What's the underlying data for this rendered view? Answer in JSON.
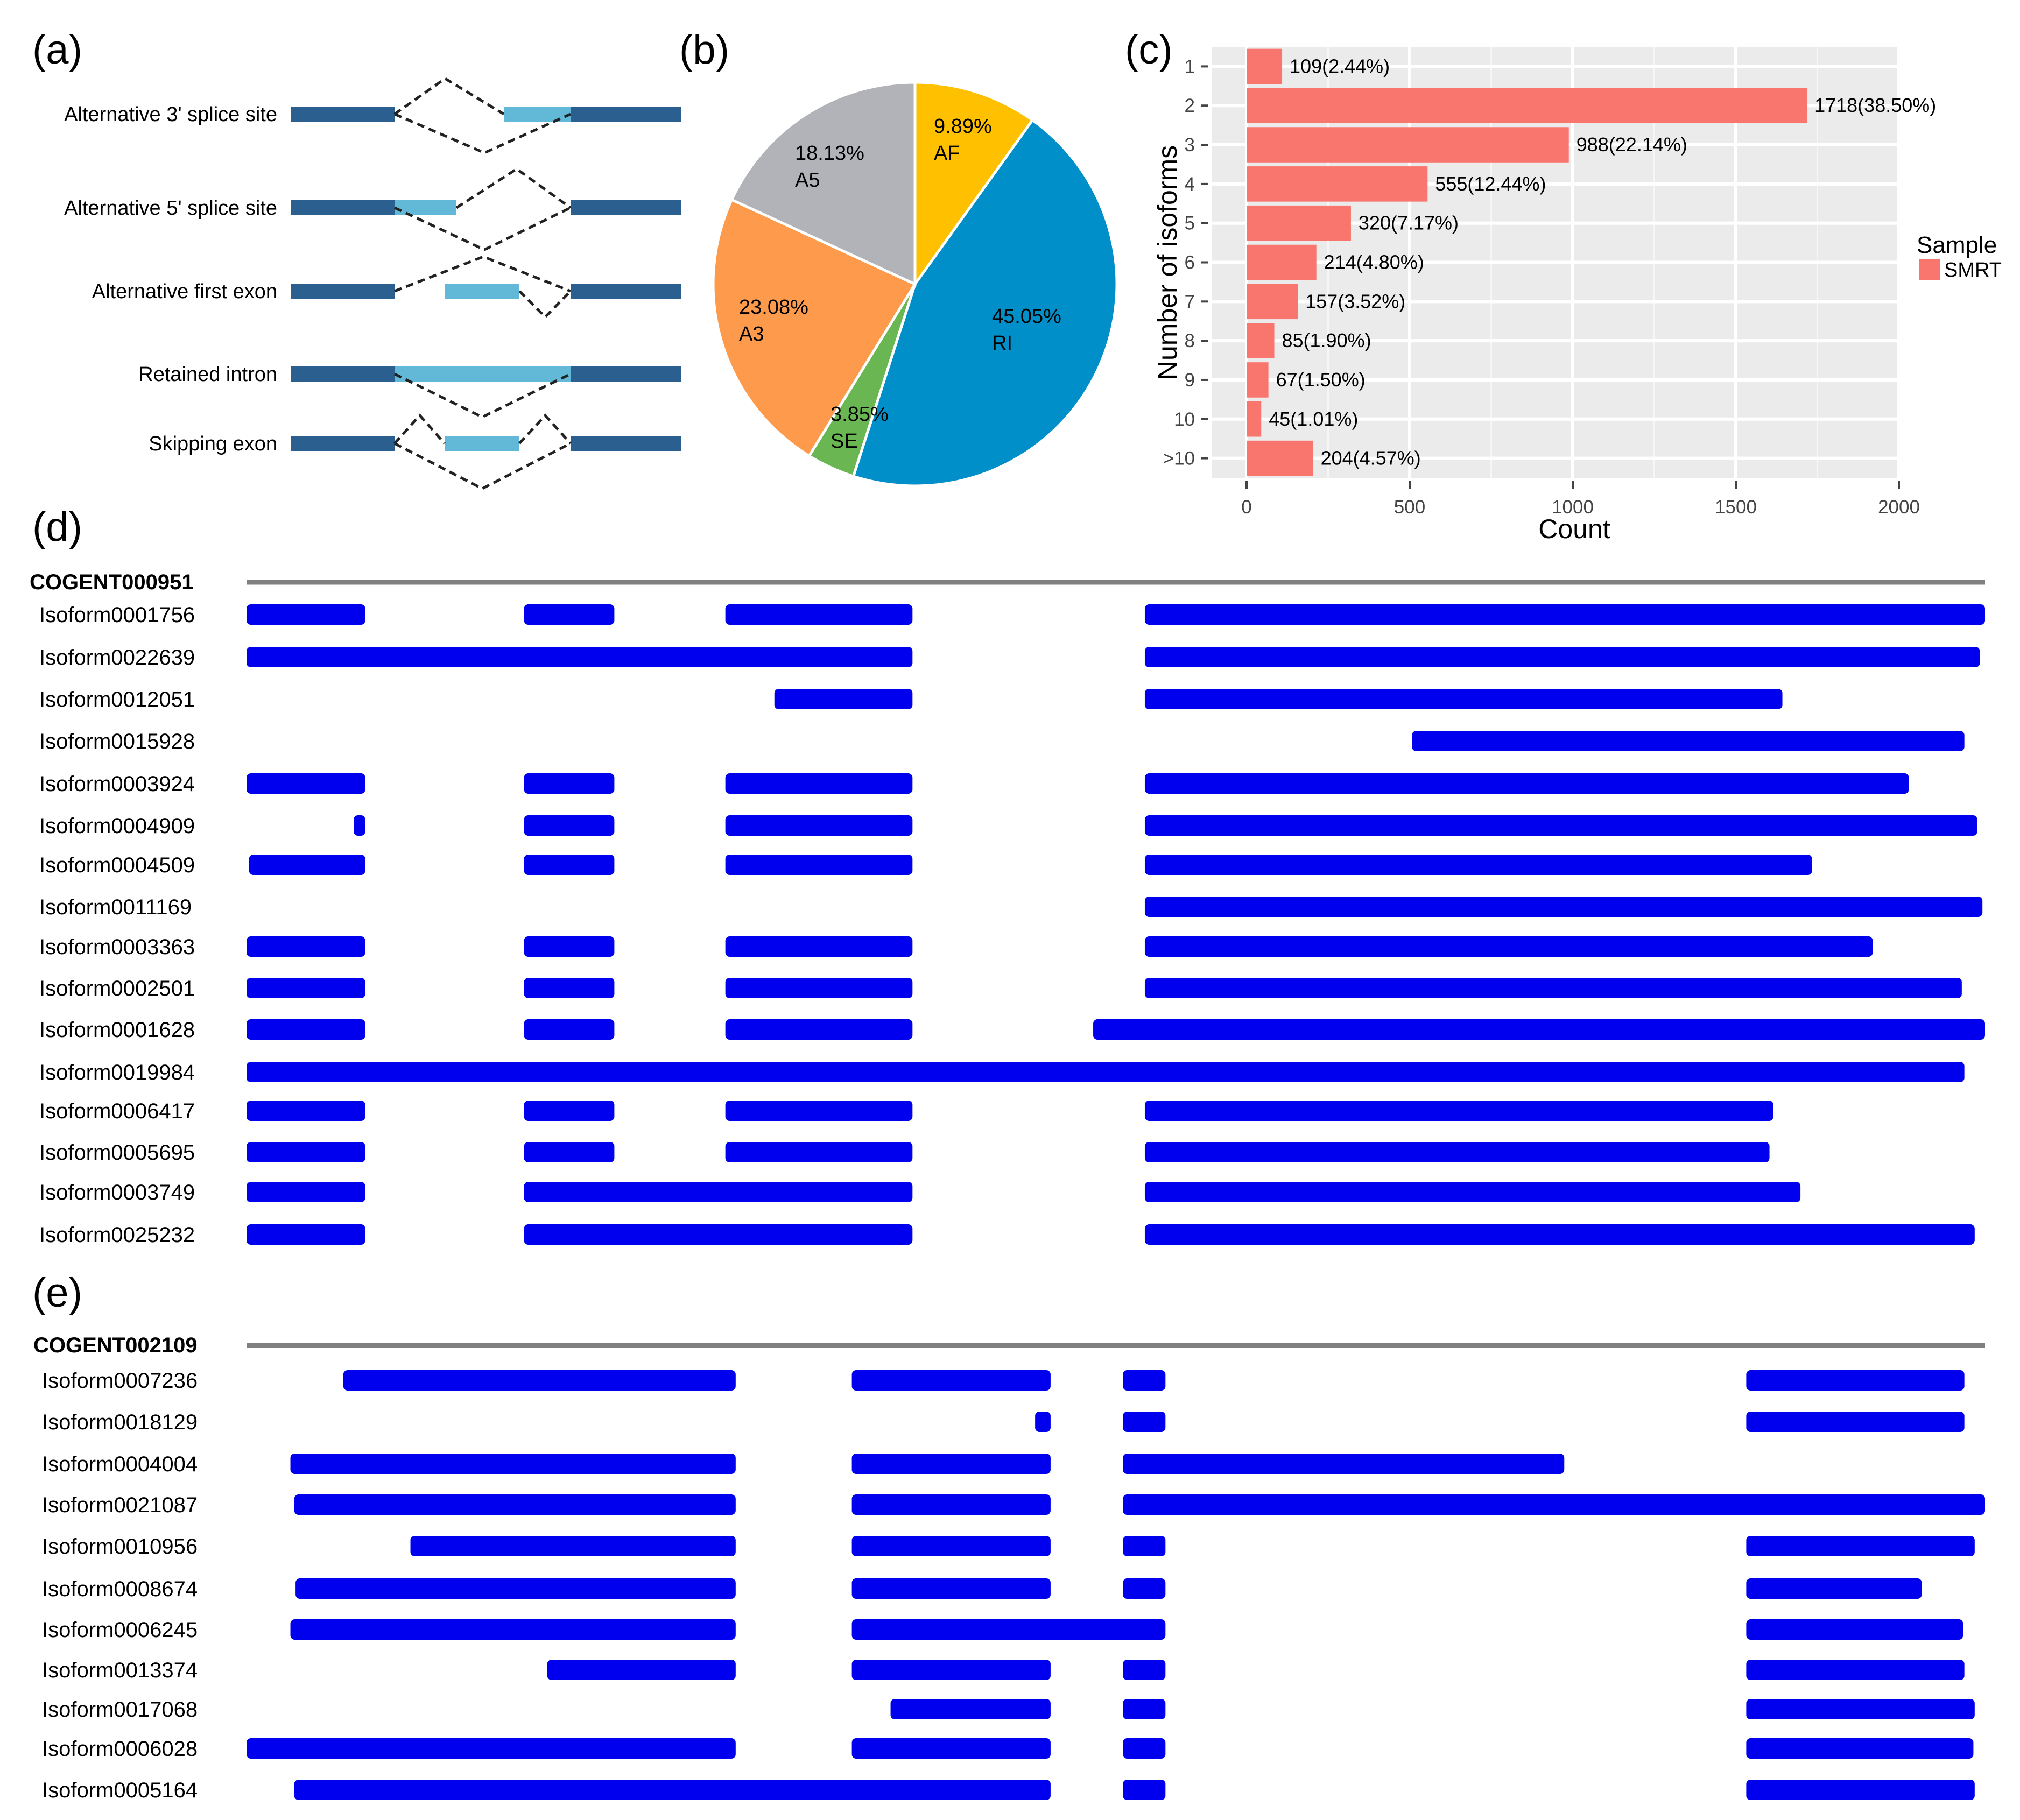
{
  "panels": {
    "a": {
      "label": "(a)",
      "events": [
        {
          "name": "Alternative 3' splice site",
          "kind": "a3"
        },
        {
          "name": "Alternative 5' splice site",
          "kind": "a5"
        },
        {
          "name": "Alternative first exon",
          "kind": "af"
        },
        {
          "name": "Retained intron",
          "kind": "ri"
        },
        {
          "name": "Skipping exon",
          "kind": "se"
        }
      ],
      "colors": {
        "exon": "#2a5f8f",
        "alt": "#62b8d7",
        "junction": "#222222"
      }
    },
    "b": {
      "label": "(b)"
    },
    "c": {
      "label": "(c)"
    },
    "d": {
      "label": "(d)"
    },
    "e": {
      "label": "(e)"
    }
  },
  "chart_data": [
    {
      "type": "pie",
      "slices": [
        {
          "pct": "9.89%",
          "name": "AF",
          "value": 9.89,
          "color": "#ffc000"
        },
        {
          "pct": "45.05%",
          "name": "RI",
          "value": 45.05,
          "color": "#008fc8"
        },
        {
          "pct": "3.85%",
          "name": "SE",
          "value": 3.85,
          "color": "#6ab652"
        },
        {
          "pct": "23.08%",
          "name": "A3",
          "value": 23.08,
          "color": "#fd9a4c"
        },
        {
          "pct": "18.13%",
          "name": "A5",
          "value": 18.13,
          "color": "#b1b3b8"
        }
      ]
    },
    {
      "type": "bar",
      "orientation": "horizontal",
      "categories": [
        "1",
        "2",
        "3",
        "4",
        "5",
        "6",
        "7",
        "8",
        "9",
        "10",
        ">10"
      ],
      "values": [
        109,
        1718,
        988,
        555,
        320,
        214,
        157,
        85,
        67,
        45,
        204
      ],
      "labels": [
        "109(2.44%)",
        "1718(38.50%)",
        "988(22.14%)",
        "555(12.44%)",
        "320(7.17%)",
        "214(4.80%)",
        "157(3.52%)",
        "85(1.90%)",
        "67(1.50%)",
        "45(1.01%)",
        "204(4.57%)"
      ],
      "xlabel": "Count",
      "ylabel": "Number of isoforms",
      "xlim": [
        0,
        2000
      ],
      "xticks": [
        "0",
        "500",
        "1000",
        "1500",
        "2000"
      ],
      "legend": {
        "title": "Sample",
        "entries": [
          "SMRT"
        ],
        "position": "right"
      },
      "bar_color": "#f8766d",
      "background": "#ebebeb",
      "grid": true
    },
    {
      "type": "gene-structure",
      "gene": "COGENT000951",
      "color": "#0000ee",
      "isoforms": [
        {
          "name": "Isoform0001756",
          "exons": [
            [
              0,
              92
            ],
            [
              215,
              285
            ],
            [
              371,
              516
            ],
            [
              696,
              1347
            ]
          ]
        },
        {
          "name": "Isoform0022639",
          "exons": [
            [
              0,
              516
            ],
            [
              696,
              1343
            ]
          ]
        },
        {
          "name": "Isoform0012051",
          "exons": [
            [
              409,
              516
            ],
            [
              696,
              1190
            ]
          ]
        },
        {
          "name": "Isoform0015928",
          "exons": [
            [
              903,
              1331
            ]
          ]
        },
        {
          "name": "Isoform0003924",
          "exons": [
            [
              0,
              92
            ],
            [
              215,
              285
            ],
            [
              371,
              516
            ],
            [
              696,
              1288
            ]
          ]
        },
        {
          "name": "Isoform0004909",
          "exons": [
            [
              83,
              92
            ],
            [
              215,
              285
            ],
            [
              371,
              516
            ],
            [
              696,
              1341
            ]
          ]
        },
        {
          "name": "Isoform0004509",
          "exons": [
            [
              2,
              92
            ],
            [
              215,
              285
            ],
            [
              371,
              516
            ],
            [
              696,
              1213
            ]
          ]
        },
        {
          "name": "Isoform0011169",
          "exons": [
            [
              696,
              1345
            ]
          ]
        },
        {
          "name": "Isoform0003363",
          "exons": [
            [
              0,
              92
            ],
            [
              215,
              285
            ],
            [
              371,
              516
            ],
            [
              696,
              1260
            ]
          ]
        },
        {
          "name": "Isoform0002501",
          "exons": [
            [
              0,
              92
            ],
            [
              215,
              285
            ],
            [
              371,
              516
            ],
            [
              696,
              1329
            ]
          ]
        },
        {
          "name": "Isoform0001628",
          "exons": [
            [
              0,
              92
            ],
            [
              215,
              285
            ],
            [
              371,
              516
            ],
            [
              656,
              1347
            ]
          ]
        },
        {
          "name": "Isoform0019984",
          "exons": [
            [
              0,
              1331
            ]
          ]
        },
        {
          "name": "Isoform0006417",
          "exons": [
            [
              0,
              92
            ],
            [
              215,
              285
            ],
            [
              371,
              516
            ],
            [
              696,
              1183
            ]
          ]
        },
        {
          "name": "Isoform0005695",
          "exons": [
            [
              0,
              92
            ],
            [
              215,
              285
            ],
            [
              371,
              516
            ],
            [
              696,
              1180
            ]
          ]
        },
        {
          "name": "Isoform0003749",
          "exons": [
            [
              0,
              92
            ],
            [
              215,
              516
            ],
            [
              696,
              1204
            ]
          ]
        },
        {
          "name": "Isoform0025232",
          "exons": [
            [
              0,
              92
            ],
            [
              215,
              516
            ],
            [
              696,
              1339
            ]
          ]
        }
      ]
    },
    {
      "type": "gene-structure",
      "gene": "COGENT002109",
      "color": "#0000ee",
      "isoforms": [
        {
          "name": "Isoform0007236",
          "exons": [
            [
              75,
              379
            ],
            [
              469,
              623
            ],
            [
              679,
              712
            ],
            [
              1162,
              1331
            ]
          ]
        },
        {
          "name": "Isoform0018129",
          "exons": [
            [
              611,
              623
            ],
            [
              679,
              712
            ],
            [
              1162,
              1331
            ]
          ]
        },
        {
          "name": "Isoform0004004",
          "exons": [
            [
              34,
              379
            ],
            [
              469,
              623
            ],
            [
              679,
              1021
            ]
          ]
        },
        {
          "name": "Isoform0021087",
          "exons": [
            [
              37,
              379
            ],
            [
              469,
              623
            ],
            [
              679,
              1347
            ]
          ]
        },
        {
          "name": "Isoform0010956",
          "exons": [
            [
              127,
              379
            ],
            [
              469,
              623
            ],
            [
              679,
              712
            ],
            [
              1162,
              1339
            ]
          ]
        },
        {
          "name": "Isoform0008674",
          "exons": [
            [
              38,
              379
            ],
            [
              469,
              623
            ],
            [
              679,
              712
            ],
            [
              1162,
              1298
            ]
          ]
        },
        {
          "name": "Isoform0006245",
          "exons": [
            [
              34,
              379
            ],
            [
              469,
              712
            ],
            [
              1162,
              1330
            ]
          ]
        },
        {
          "name": "Isoform0013374",
          "exons": [
            [
              233,
              379
            ],
            [
              469,
              623
            ],
            [
              679,
              712
            ],
            [
              1162,
              1331
            ]
          ]
        },
        {
          "name": "Isoform0017068",
          "exons": [
            [
              499,
              623
            ],
            [
              679,
              712
            ],
            [
              1162,
              1339
            ]
          ]
        },
        {
          "name": "Isoform0006028",
          "exons": [
            [
              0,
              379
            ],
            [
              469,
              623
            ],
            [
              679,
              712
            ],
            [
              1162,
              1338
            ]
          ]
        },
        {
          "name": "Isoform0005164",
          "exons": [
            [
              37,
              623
            ],
            [
              679,
              712
            ],
            [
              1162,
              1339
            ]
          ]
        }
      ]
    }
  ]
}
